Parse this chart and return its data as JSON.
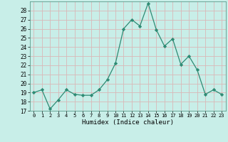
{
  "x": [
    0,
    1,
    2,
    3,
    4,
    5,
    6,
    7,
    8,
    9,
    10,
    11,
    12,
    13,
    14,
    15,
    16,
    17,
    18,
    19,
    20,
    21,
    22,
    23
  ],
  "y": [
    19.0,
    19.3,
    17.2,
    18.2,
    19.3,
    18.8,
    18.7,
    18.7,
    19.3,
    20.4,
    22.2,
    26.0,
    27.0,
    26.3,
    28.8,
    25.9,
    24.1,
    24.9,
    22.1,
    23.0,
    21.5,
    18.8,
    19.3,
    18.8
  ],
  "line_color": "#2e8b74",
  "marker": "D",
  "marker_size": 2.2,
  "bg_color": "#c8eee8",
  "grid_color": "#d9b8b8",
  "xlabel": "Humidex (Indice chaleur)",
  "ylim": [
    17,
    29
  ],
  "yticks": [
    17,
    18,
    19,
    20,
    21,
    22,
    23,
    24,
    25,
    26,
    27,
    28
  ],
  "xlim": [
    -0.5,
    23.5
  ],
  "xticks": [
    0,
    1,
    2,
    3,
    4,
    5,
    6,
    7,
    8,
    9,
    10,
    11,
    12,
    13,
    14,
    15,
    16,
    17,
    18,
    19,
    20,
    21,
    22,
    23
  ]
}
